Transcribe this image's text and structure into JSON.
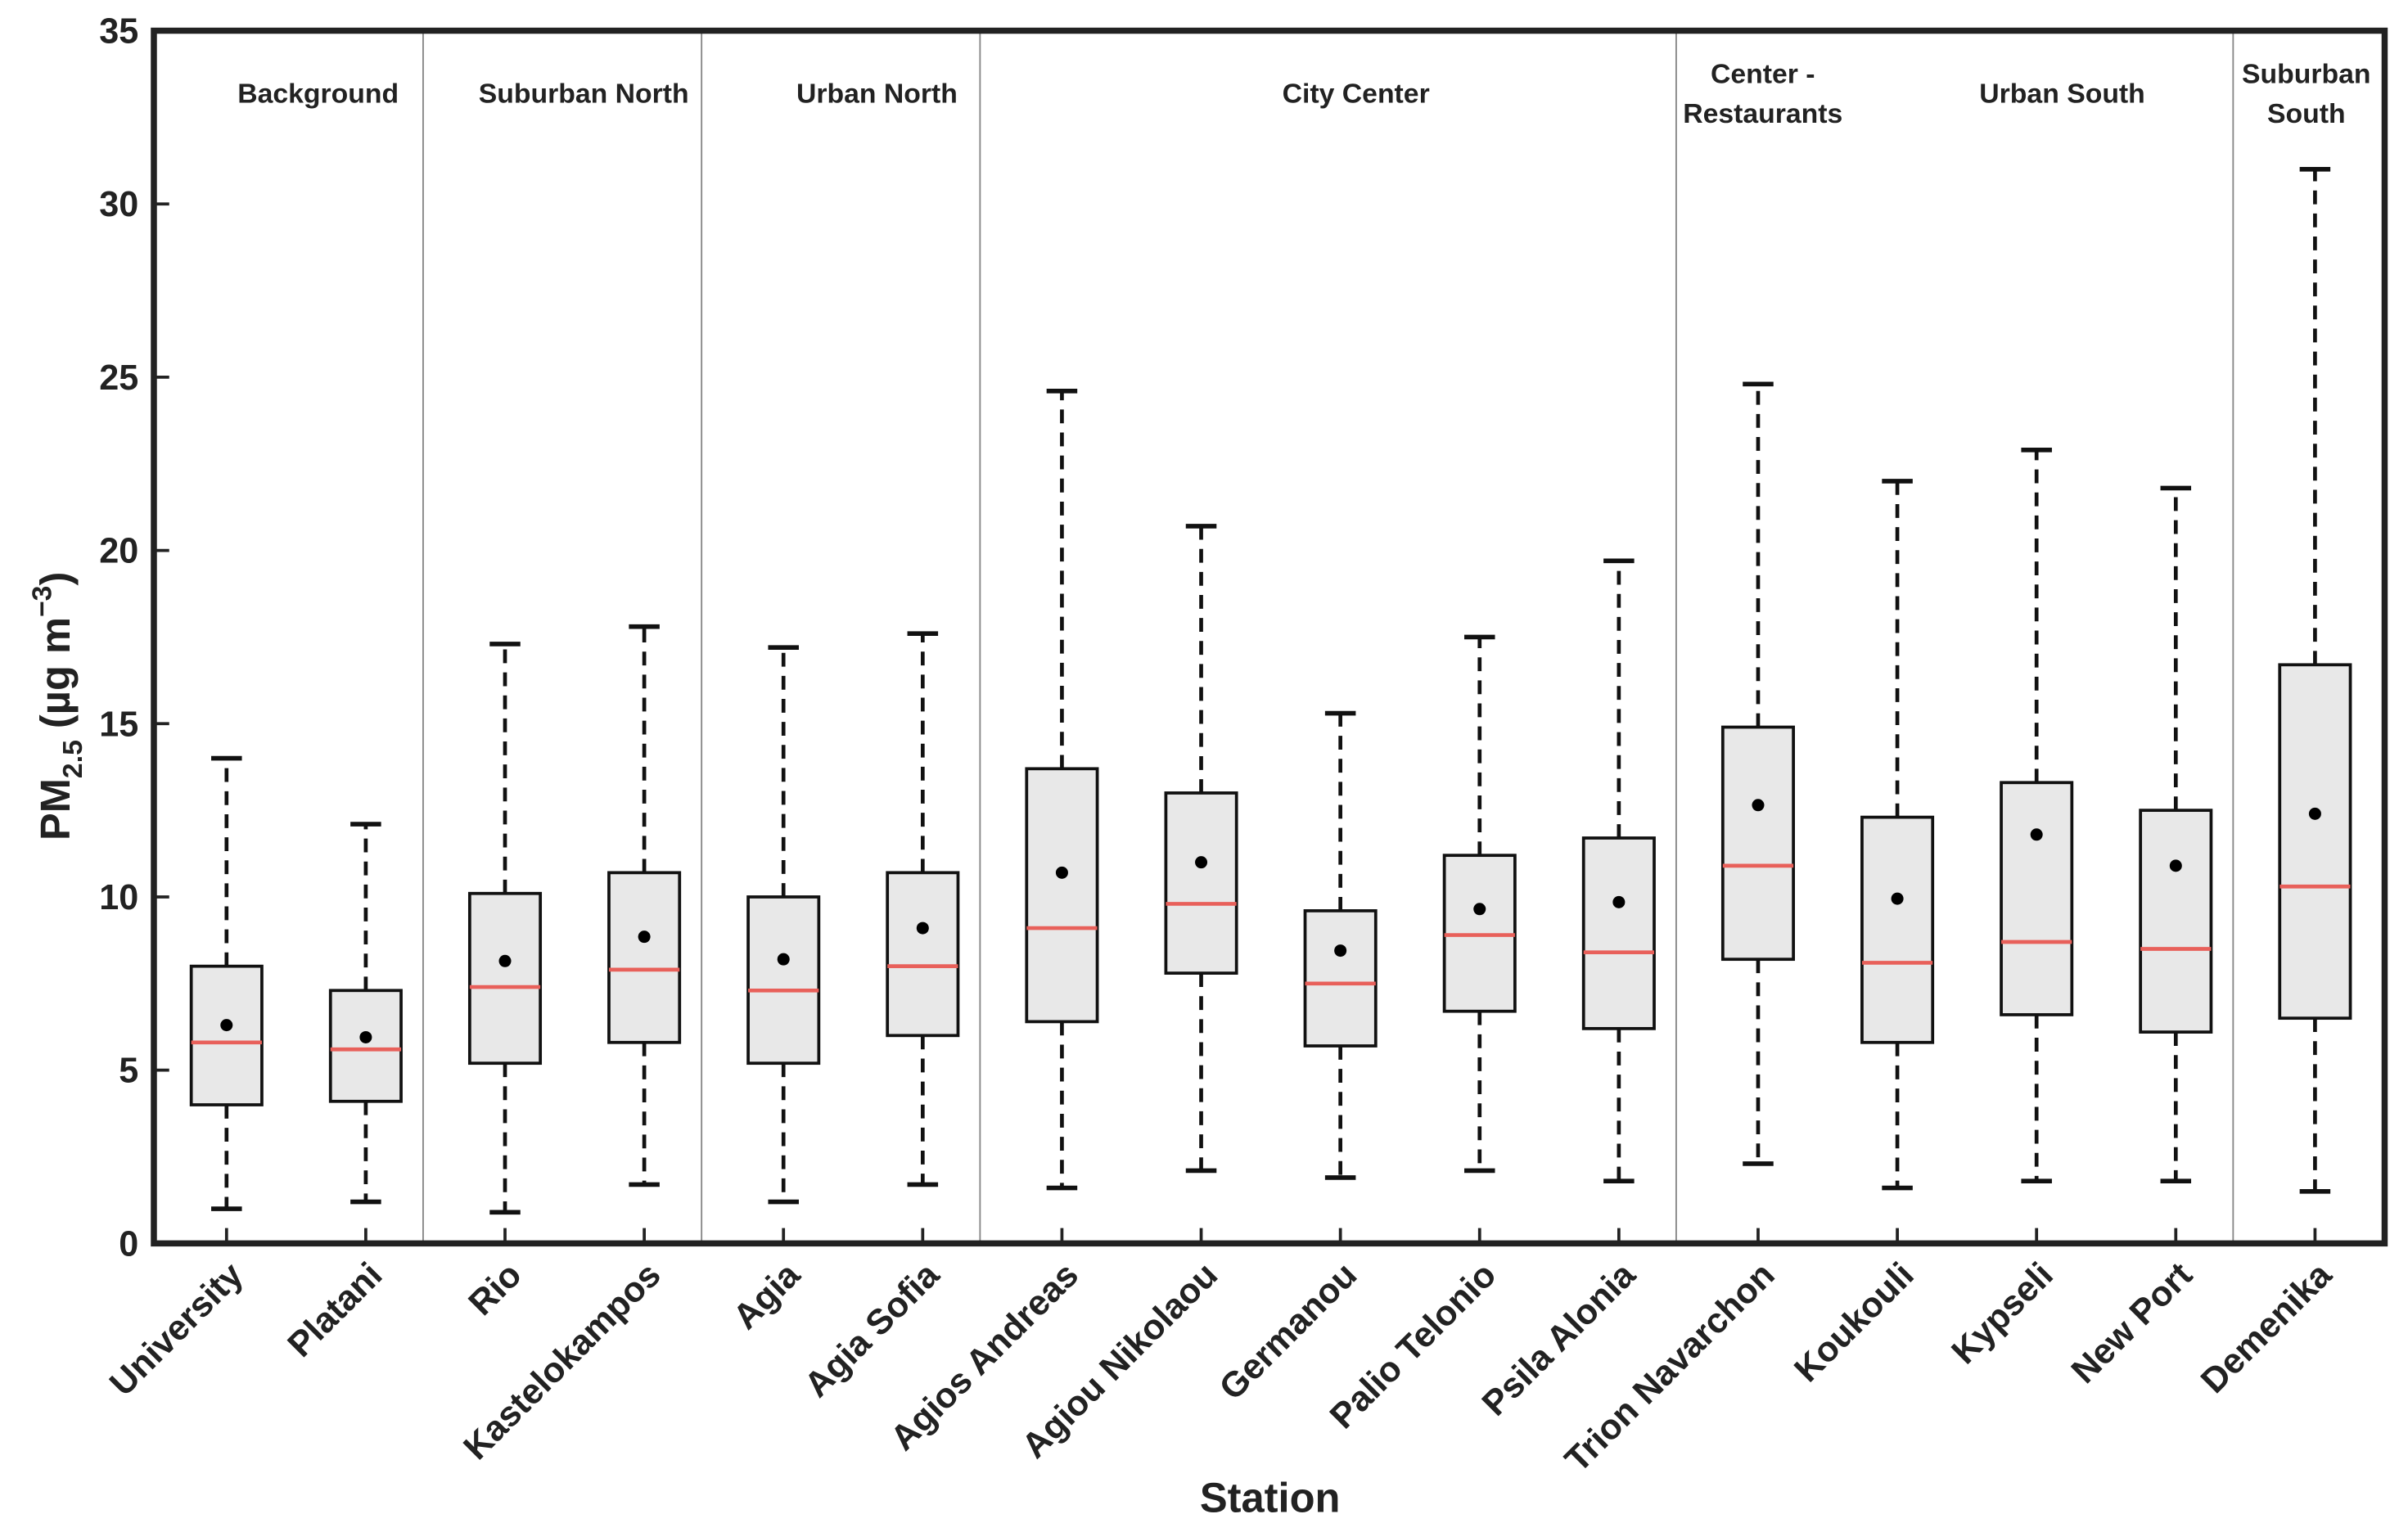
{
  "chart_data": {
    "type": "box",
    "x_label": "Station",
    "y_label": [
      "PM",
      "2.5",
      " (µg m",
      "−3",
      ")"
    ],
    "categories": [
      "University",
      "Platani",
      "Rio",
      "Kastelokampos",
      "Agia",
      "Agia Sofia",
      "Agios Andreas",
      "Agiou Nikolaou",
      "Germanou",
      "Palio Telonio",
      "Psila Alonia",
      "Trion Navarchon",
      "Koukouli",
      "Kypseli",
      "New Port",
      "Demenika"
    ],
    "whisker_low": [
      1.0,
      1.2,
      0.9,
      1.7,
      1.2,
      1.7,
      1.6,
      2.1,
      1.9,
      2.1,
      1.8,
      2.3,
      1.6,
      1.8,
      1.8,
      1.5
    ],
    "q1": [
      4.0,
      4.1,
      5.2,
      5.8,
      5.2,
      6.0,
      6.4,
      7.8,
      5.7,
      6.7,
      6.2,
      8.2,
      5.8,
      6.6,
      6.1,
      6.5
    ],
    "median": [
      5.8,
      5.6,
      7.4,
      7.9,
      7.3,
      8.0,
      9.1,
      9.8,
      7.5,
      8.9,
      8.4,
      10.9,
      8.1,
      8.7,
      8.5,
      10.3
    ],
    "q3": [
      8.0,
      7.3,
      10.1,
      10.7,
      10.0,
      10.7,
      13.7,
      13.0,
      9.6,
      11.2,
      11.7,
      14.9,
      12.3,
      13.3,
      12.5,
      16.7
    ],
    "whisker_high": [
      14.0,
      12.1,
      17.3,
      17.8,
      17.2,
      17.6,
      24.6,
      20.7,
      15.3,
      17.5,
      19.7,
      24.8,
      22.0,
      22.9,
      21.8,
      31.0
    ],
    "mean": [
      6.3,
      5.95,
      8.15,
      8.85,
      8.2,
      9.1,
      10.7,
      11.0,
      8.45,
      9.65,
      9.85,
      12.65,
      9.95,
      11.8,
      10.9,
      12.4
    ],
    "zones": [
      [
        "Background"
      ],
      [
        "Suburban North"
      ],
      [
        "Urban North"
      ],
      [
        "City Center"
      ],
      [
        "Center -",
        "Restaurants"
      ],
      [
        "Urban South"
      ],
      [
        "Suburban",
        "South"
      ]
    ],
    "box_color": "#e8e8e8",
    "median_color": "#e8605a",
    "mean_color": "#000000",
    "ylim": [
      0,
      35
    ],
    "yticks": [
      0,
      5,
      10,
      15,
      20,
      25,
      30,
      35
    ]
  }
}
